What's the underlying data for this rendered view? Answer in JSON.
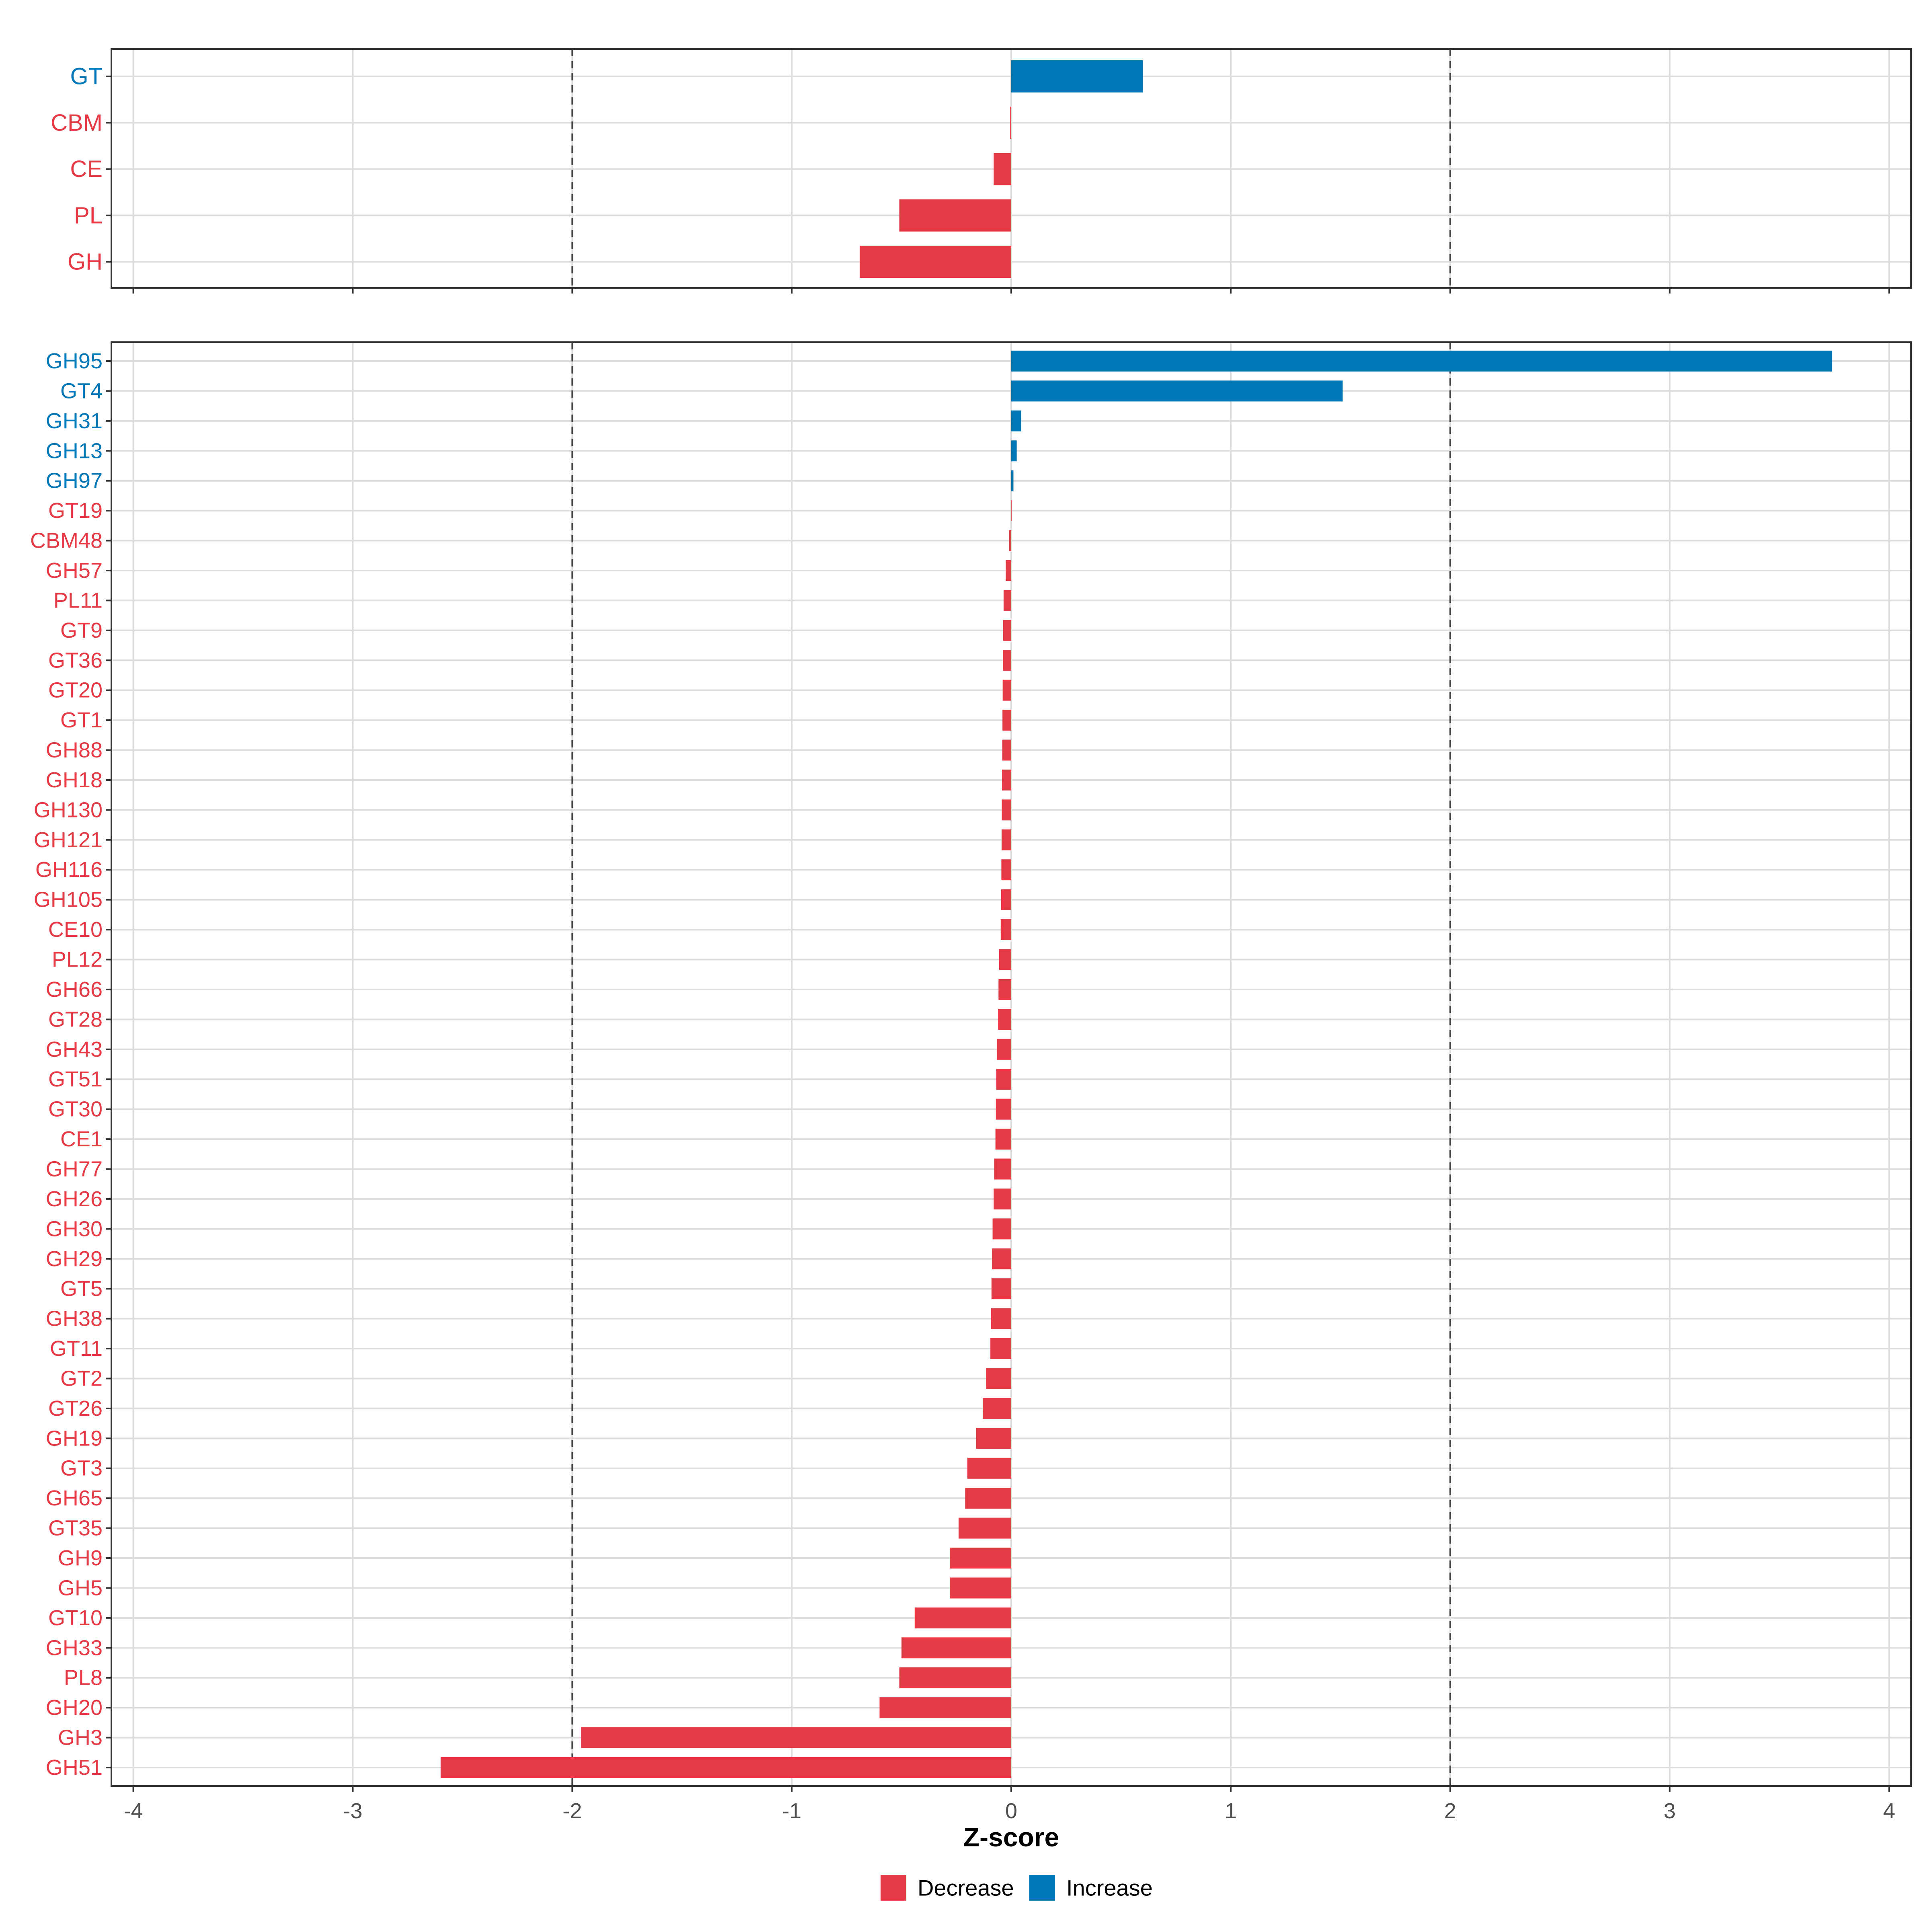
{
  "colors": {
    "decrease": "#E63946",
    "increase": "#0077B6",
    "grid": "#DCDCDC",
    "frame": "#333333",
    "tick_text": "#4D4D4D",
    "ref_line": "#444444"
  },
  "chart_data": [
    {
      "type": "bar",
      "orientation": "horizontal",
      "panel": "top",
      "title": "",
      "xlabel": "",
      "ylabel": "",
      "xlim": [
        -4.1,
        4.1
      ],
      "x_ticks": [
        -4,
        -3,
        -2,
        -1,
        0,
        1,
        2,
        3,
        4
      ],
      "reference_lines": [
        -2,
        2
      ],
      "grid": true,
      "categories": [
        "GT",
        "CBM",
        "CE",
        "PL",
        "GH"
      ],
      "values": [
        0.6,
        -0.005,
        -0.08,
        -0.51,
        -0.69
      ],
      "groups": [
        "Increase",
        "Decrease",
        "Decrease",
        "Decrease",
        "Decrease"
      ]
    },
    {
      "type": "bar",
      "orientation": "horizontal",
      "panel": "bottom",
      "title": "",
      "xlabel": "Z-score",
      "ylabel": "",
      "xlim": [
        -4.1,
        4.1
      ],
      "x_ticks": [
        -4,
        -3,
        -2,
        -1,
        0,
        1,
        2,
        3,
        4
      ],
      "x_tick_labels": [
        "-4",
        "-3",
        "-2",
        "-1",
        "0",
        "1",
        "2",
        "3",
        "4"
      ],
      "reference_lines": [
        -2,
        2
      ],
      "grid": true,
      "categories": [
        "GH95",
        "GT4",
        "GH31",
        "GH13",
        "GH97",
        "GT19",
        "CBM48",
        "GH57",
        "PL11",
        "GT9",
        "GT36",
        "GT20",
        "GT1",
        "GH88",
        "GH18",
        "GH130",
        "GH121",
        "GH116",
        "GH105",
        "CE10",
        "PL12",
        "GH66",
        "GT28",
        "GH43",
        "GT51",
        "GT30",
        "CE1",
        "GH77",
        "GH26",
        "GH30",
        "GH29",
        "GT5",
        "GH38",
        "GT11",
        "GT2",
        "GT26",
        "GH19",
        "GT3",
        "GH65",
        "GT35",
        "GH9",
        "GH5",
        "GT10",
        "GH33",
        "PL8",
        "GH20",
        "GH3",
        "GH51"
      ],
      "values": [
        3.74,
        1.51,
        0.045,
        0.025,
        0.01,
        -0.002,
        -0.01,
        -0.025,
        -0.035,
        -0.037,
        -0.038,
        -0.039,
        -0.04,
        -0.041,
        -0.042,
        -0.043,
        -0.044,
        -0.045,
        -0.046,
        -0.048,
        -0.055,
        -0.058,
        -0.06,
        -0.065,
        -0.068,
        -0.07,
        -0.072,
        -0.078,
        -0.08,
        -0.085,
        -0.088,
        -0.09,
        -0.092,
        -0.095,
        -0.115,
        -0.13,
        -0.16,
        -0.2,
        -0.21,
        -0.24,
        -0.28,
        -0.28,
        -0.44,
        -0.5,
        -0.51,
        -0.6,
        -1.96,
        -2.6
      ],
      "groups": [
        "Increase",
        "Increase",
        "Increase",
        "Increase",
        "Increase",
        "Decrease",
        "Decrease",
        "Decrease",
        "Decrease",
        "Decrease",
        "Decrease",
        "Decrease",
        "Decrease",
        "Decrease",
        "Decrease",
        "Decrease",
        "Decrease",
        "Decrease",
        "Decrease",
        "Decrease",
        "Decrease",
        "Decrease",
        "Decrease",
        "Decrease",
        "Decrease",
        "Decrease",
        "Decrease",
        "Decrease",
        "Decrease",
        "Decrease",
        "Decrease",
        "Decrease",
        "Decrease",
        "Decrease",
        "Decrease",
        "Decrease",
        "Decrease",
        "Decrease",
        "Decrease",
        "Decrease",
        "Decrease",
        "Decrease",
        "Decrease",
        "Decrease",
        "Decrease",
        "Decrease",
        "Decrease",
        "Decrease"
      ]
    }
  ],
  "legend": {
    "position": "bottom",
    "items": [
      {
        "label": "Decrease",
        "color": "#E63946"
      },
      {
        "label": "Increase",
        "color": "#0077B6"
      }
    ]
  }
}
